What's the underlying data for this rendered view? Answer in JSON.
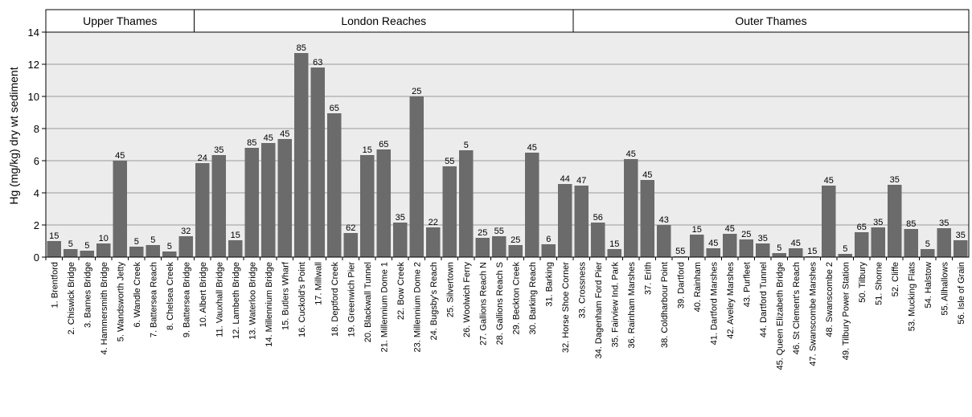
{
  "chart_data": {
    "type": "bar",
    "ylabel": "Hg (mg/kg) dry wt sediment",
    "ylim": [
      0,
      14
    ],
    "yticks": [
      0,
      2,
      4,
      6,
      8,
      10,
      12,
      14
    ],
    "grid": true,
    "regions": [
      {
        "name": "Upper Thames",
        "start": 1,
        "end": 9
      },
      {
        "name": "London Reaches",
        "start": 10,
        "end": 32
      },
      {
        "name": "Outer Thames",
        "start": 33,
        "end": 56
      }
    ],
    "categories": [
      "1. Brentford",
      "2. Chiswick Bridge",
      "3. Barnes Bridge",
      "4. Hammersmith Bridge",
      "5. Wandsworth Jetty",
      "6. Wandle Creek",
      "7. Battersea Reach",
      "8. Chelsea Creek",
      "9. Battersea Bridge",
      "10. Albert Bridge",
      "11. Vauxhall Bridge",
      "12. Lambeth Bridge",
      "13. Waterloo Bridge",
      "14. Millennium Bridge",
      "15. Butlers Wharf",
      "16. Cuckold's Point",
      "17. Millwall",
      "18. Deptford Creek",
      "19. Greenwich Pier",
      "20. Blackwall Tunnel",
      "21. Millennium Dome 1",
      "22. Bow Creek",
      "23. Millennium Dome 2",
      "24. Bugsby's Reach",
      "25. Silvertown",
      "26. Woolwich Ferry",
      "27. Gallions Reach N",
      "28. Gallions Reach S",
      "29. Beckton Creek",
      "30. Barking Reach",
      "31. Barking",
      "32. Horse Shoe Corner",
      "33. Crossness",
      "34. Dagenham Ford Pier",
      "35. Fairview Ind. Park",
      "36. Rainham Marshes",
      "37. Erith",
      "38. Coldharbour Point",
      "39. Dartford",
      "40. Rainham",
      "41. Dartford Marshes",
      "42. Aveley Marshes",
      "43. Purfleet",
      "44. Dartford Tunnel",
      "45. Queen Elizabeth Bridge",
      "46. St Clement's Reach",
      "47. Swanscombe Marshes",
      "48. Swanscombe 2",
      "49. Tilbury Power Station",
      "50. Tilbury",
      "51. Shorne",
      "52. Cliffe",
      "53. Mucking Flats",
      "54. Halstow",
      "55. Allhallows",
      "56. Isle of Grain"
    ],
    "values": [
      1.0,
      0.5,
      0.4,
      0.85,
      6.0,
      0.65,
      0.75,
      0.35,
      1.3,
      5.85,
      6.35,
      1.05,
      6.8,
      7.1,
      7.35,
      12.7,
      11.8,
      8.95,
      1.5,
      6.35,
      6.7,
      2.15,
      10.0,
      1.85,
      5.65,
      6.65,
      1.2,
      1.3,
      0.75,
      6.5,
      0.8,
      4.55,
      4.45,
      2.15,
      0.5,
      6.1,
      4.8,
      2.0,
      0.05,
      1.4,
      0.55,
      1.45,
      1.1,
      0.85,
      0.25,
      0.55,
      0.05,
      4.45,
      0.2,
      1.55,
      1.85,
      4.5,
      1.75,
      0.5,
      1.8,
      1.05
    ],
    "data_labels": [
      "15",
      "5",
      "5",
      "10",
      "45",
      "5",
      "5",
      "5",
      "32",
      "24",
      "35",
      "15",
      "85",
      "45",
      "45",
      "85",
      "63",
      "65",
      "62",
      "15",
      "65",
      "35",
      "25",
      "22",
      "55",
      "5",
      "25",
      "55",
      "25",
      "45",
      "6",
      "44",
      "47",
      "56",
      "15",
      "45",
      "45",
      "43",
      "55",
      "15",
      "45",
      "45",
      "25",
      "35",
      "5",
      "45",
      "15",
      "45",
      "5",
      "65",
      "35",
      "35",
      "85",
      "5",
      "35",
      "35"
    ],
    "colors": {
      "bar": "#6b6b6b",
      "plot_bg": "#ececec",
      "grid": "#9a9a9a",
      "header_bg": "#ffffff"
    }
  }
}
